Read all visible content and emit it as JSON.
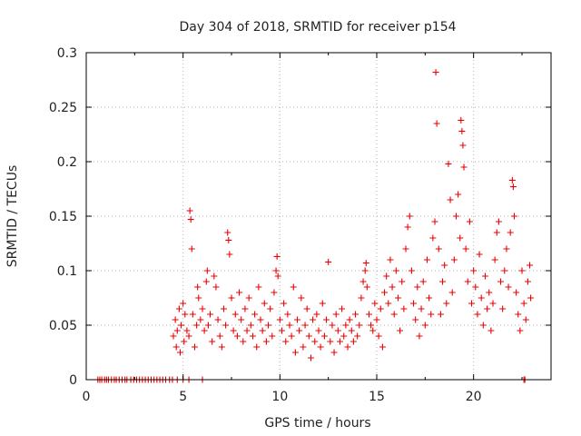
{
  "chart_data": {
    "type": "scatter",
    "title": "Day 304 of 2018, SRMTID for receiver p154",
    "xlabel": "GPS time / hours",
    "ylabel": "SRMTID / TECUs",
    "xlim": [
      0,
      24
    ],
    "ylim": [
      0,
      0.3
    ],
    "xticks": [
      0,
      5,
      10,
      15,
      20
    ],
    "yticks": [
      0,
      0.05,
      0.1,
      0.15,
      0.2,
      0.25,
      0.3
    ],
    "xtick_labels": [
      "0",
      "5",
      "10",
      "15",
      "20"
    ],
    "ytick_labels": [
      "0",
      "0.05",
      "0.1",
      "0.15",
      "0.2",
      "0.25",
      "0.3"
    ],
    "grid": true,
    "marker": "+",
    "series": [
      {
        "name": "SRMTID",
        "color": "#ee0000",
        "points": [
          [
            0.6,
            0
          ],
          [
            0.7,
            0
          ],
          [
            0.8,
            0
          ],
          [
            0.95,
            0
          ],
          [
            1.05,
            0
          ],
          [
            1.15,
            0
          ],
          [
            1.3,
            0
          ],
          [
            1.45,
            0
          ],
          [
            1.55,
            0
          ],
          [
            1.7,
            0
          ],
          [
            1.85,
            0
          ],
          [
            2.0,
            0
          ],
          [
            2.1,
            0
          ],
          [
            2.3,
            0
          ],
          [
            2.45,
            0
          ],
          [
            2.6,
            0
          ],
          [
            2.75,
            0
          ],
          [
            2.9,
            0
          ],
          [
            3.05,
            0
          ],
          [
            3.2,
            0
          ],
          [
            3.35,
            0
          ],
          [
            3.5,
            0
          ],
          [
            3.65,
            0
          ],
          [
            3.8,
            0
          ],
          [
            3.95,
            0
          ],
          [
            4.1,
            0
          ],
          [
            4.3,
            0
          ],
          [
            4.45,
            0
          ],
          [
            4.7,
            0
          ],
          [
            5.0,
            0
          ],
          [
            5.3,
            0
          ],
          [
            6.0,
            0
          ],
          [
            22.6,
            0
          ],
          [
            22.65,
            0
          ],
          [
            4.5,
            0.04
          ],
          [
            4.6,
            0.055
          ],
          [
            4.65,
            0.03
          ],
          [
            4.7,
            0.045
          ],
          [
            4.8,
            0.065
          ],
          [
            4.85,
            0.025
          ],
          [
            4.9,
            0.05
          ],
          [
            5.0,
            0.07
          ],
          [
            5.05,
            0.035
          ],
          [
            5.1,
            0.06
          ],
          [
            5.2,
            0.045
          ],
          [
            5.3,
            0.04
          ],
          [
            5.35,
            0.155
          ],
          [
            5.4,
            0.147
          ],
          [
            5.45,
            0.12
          ],
          [
            5.5,
            0.06
          ],
          [
            5.6,
            0.03
          ],
          [
            5.7,
            0.05
          ],
          [
            5.75,
            0.085
          ],
          [
            5.8,
            0.075
          ],
          [
            5.9,
            0.055
          ],
          [
            6.0,
            0.065
          ],
          [
            6.1,
            0.045
          ],
          [
            6.2,
            0.09
          ],
          [
            6.25,
            0.1
          ],
          [
            6.3,
            0.05
          ],
          [
            6.4,
            0.06
          ],
          [
            6.5,
            0.035
          ],
          [
            6.6,
            0.095
          ],
          [
            6.7,
            0.085
          ],
          [
            6.8,
            0.055
          ],
          [
            6.9,
            0.04
          ],
          [
            7.0,
            0.03
          ],
          [
            7.1,
            0.065
          ],
          [
            7.2,
            0.05
          ],
          [
            7.3,
            0.135
          ],
          [
            7.35,
            0.128
          ],
          [
            7.4,
            0.115
          ],
          [
            7.5,
            0.075
          ],
          [
            7.6,
            0.045
          ],
          [
            7.7,
            0.06
          ],
          [
            7.8,
            0.04
          ],
          [
            7.9,
            0.08
          ],
          [
            8.0,
            0.055
          ],
          [
            8.1,
            0.035
          ],
          [
            8.2,
            0.065
          ],
          [
            8.3,
            0.045
          ],
          [
            8.4,
            0.075
          ],
          [
            8.5,
            0.05
          ],
          [
            8.6,
            0.04
          ],
          [
            8.7,
            0.06
          ],
          [
            8.8,
            0.03
          ],
          [
            8.9,
            0.085
          ],
          [
            9.0,
            0.055
          ],
          [
            9.1,
            0.045
          ],
          [
            9.2,
            0.07
          ],
          [
            9.3,
            0.035
          ],
          [
            9.4,
            0.05
          ],
          [
            9.5,
            0.065
          ],
          [
            9.6,
            0.04
          ],
          [
            9.7,
            0.08
          ],
          [
            9.8,
            0.1
          ],
          [
            9.85,
            0.113
          ],
          [
            9.9,
            0.095
          ],
          [
            10.0,
            0.055
          ],
          [
            10.1,
            0.045
          ],
          [
            10.2,
            0.07
          ],
          [
            10.3,
            0.035
          ],
          [
            10.4,
            0.06
          ],
          [
            10.5,
            0.05
          ],
          [
            10.6,
            0.04
          ],
          [
            10.7,
            0.085
          ],
          [
            10.8,
            0.025
          ],
          [
            10.9,
            0.055
          ],
          [
            11.0,
            0.045
          ],
          [
            11.1,
            0.075
          ],
          [
            11.2,
            0.03
          ],
          [
            11.3,
            0.05
          ],
          [
            11.4,
            0.065
          ],
          [
            11.5,
            0.04
          ],
          [
            11.6,
            0.02
          ],
          [
            11.7,
            0.055
          ],
          [
            11.8,
            0.035
          ],
          [
            11.9,
            0.06
          ],
          [
            12.0,
            0.045
          ],
          [
            12.1,
            0.03
          ],
          [
            12.2,
            0.07
          ],
          [
            12.3,
            0.04
          ],
          [
            12.4,
            0.055
          ],
          [
            12.5,
            0.108
          ],
          [
            12.6,
            0.035
          ],
          [
            12.7,
            0.05
          ],
          [
            12.8,
            0.025
          ],
          [
            12.9,
            0.06
          ],
          [
            13.0,
            0.045
          ],
          [
            13.1,
            0.035
          ],
          [
            13.2,
            0.065
          ],
          [
            13.3,
            0.04
          ],
          [
            13.4,
            0.05
          ],
          [
            13.5,
            0.03
          ],
          [
            13.6,
            0.055
          ],
          [
            13.7,
            0.045
          ],
          [
            13.8,
            0.035
          ],
          [
            13.9,
            0.06
          ],
          [
            14.0,
            0.04
          ],
          [
            14.1,
            0.05
          ],
          [
            14.2,
            0.075
          ],
          [
            14.3,
            0.09
          ],
          [
            14.4,
            0.1
          ],
          [
            14.45,
            0.107
          ],
          [
            14.5,
            0.085
          ],
          [
            14.6,
            0.06
          ],
          [
            14.7,
            0.05
          ],
          [
            14.8,
            0.045
          ],
          [
            14.9,
            0.07
          ],
          [
            15.0,
            0.055
          ],
          [
            15.1,
            0.04
          ],
          [
            15.2,
            0.065
          ],
          [
            15.3,
            0.03
          ],
          [
            15.4,
            0.08
          ],
          [
            15.5,
            0.095
          ],
          [
            15.6,
            0.07
          ],
          [
            15.7,
            0.11
          ],
          [
            15.8,
            0.085
          ],
          [
            15.9,
            0.06
          ],
          [
            16.0,
            0.1
          ],
          [
            16.1,
            0.075
          ],
          [
            16.2,
            0.045
          ],
          [
            16.3,
            0.09
          ],
          [
            16.4,
            0.065
          ],
          [
            16.5,
            0.12
          ],
          [
            16.6,
            0.14
          ],
          [
            16.7,
            0.15
          ],
          [
            16.8,
            0.1
          ],
          [
            16.9,
            0.07
          ],
          [
            17.0,
            0.055
          ],
          [
            17.1,
            0.085
          ],
          [
            17.2,
            0.04
          ],
          [
            17.3,
            0.065
          ],
          [
            17.4,
            0.09
          ],
          [
            17.5,
            0.05
          ],
          [
            17.6,
            0.11
          ],
          [
            17.7,
            0.075
          ],
          [
            17.8,
            0.06
          ],
          [
            17.9,
            0.13
          ],
          [
            18.0,
            0.145
          ],
          [
            18.05,
            0.282
          ],
          [
            18.1,
            0.235
          ],
          [
            18.2,
            0.12
          ],
          [
            18.3,
            0.06
          ],
          [
            18.4,
            0.09
          ],
          [
            18.5,
            0.105
          ],
          [
            18.6,
            0.07
          ],
          [
            18.7,
            0.198
          ],
          [
            18.8,
            0.165
          ],
          [
            18.9,
            0.08
          ],
          [
            19.0,
            0.11
          ],
          [
            19.1,
            0.15
          ],
          [
            19.2,
            0.17
          ],
          [
            19.3,
            0.13
          ],
          [
            19.35,
            0.238
          ],
          [
            19.4,
            0.228
          ],
          [
            19.45,
            0.215
          ],
          [
            19.5,
            0.195
          ],
          [
            19.6,
            0.12
          ],
          [
            19.7,
            0.09
          ],
          [
            19.8,
            0.145
          ],
          [
            19.9,
            0.07
          ],
          [
            20.0,
            0.1
          ],
          [
            20.1,
            0.085
          ],
          [
            20.2,
            0.06
          ],
          [
            20.3,
            0.115
          ],
          [
            20.4,
            0.075
          ],
          [
            20.5,
            0.05
          ],
          [
            20.6,
            0.095
          ],
          [
            20.7,
            0.065
          ],
          [
            20.8,
            0.08
          ],
          [
            20.9,
            0.045
          ],
          [
            21.0,
            0.07
          ],
          [
            21.1,
            0.11
          ],
          [
            21.2,
            0.135
          ],
          [
            21.3,
            0.145
          ],
          [
            21.4,
            0.09
          ],
          [
            21.5,
            0.065
          ],
          [
            21.6,
            0.1
          ],
          [
            21.7,
            0.12
          ],
          [
            21.8,
            0.085
          ],
          [
            21.9,
            0.135
          ],
          [
            22.0,
            0.183
          ],
          [
            22.05,
            0.177
          ],
          [
            22.1,
            0.15
          ],
          [
            22.2,
            0.08
          ],
          [
            22.3,
            0.06
          ],
          [
            22.4,
            0.045
          ],
          [
            22.5,
            0.1
          ],
          [
            22.6,
            0.07
          ],
          [
            22.7,
            0.055
          ],
          [
            22.8,
            0.09
          ],
          [
            22.9,
            0.105
          ],
          [
            22.95,
            0.075
          ]
        ]
      }
    ]
  }
}
